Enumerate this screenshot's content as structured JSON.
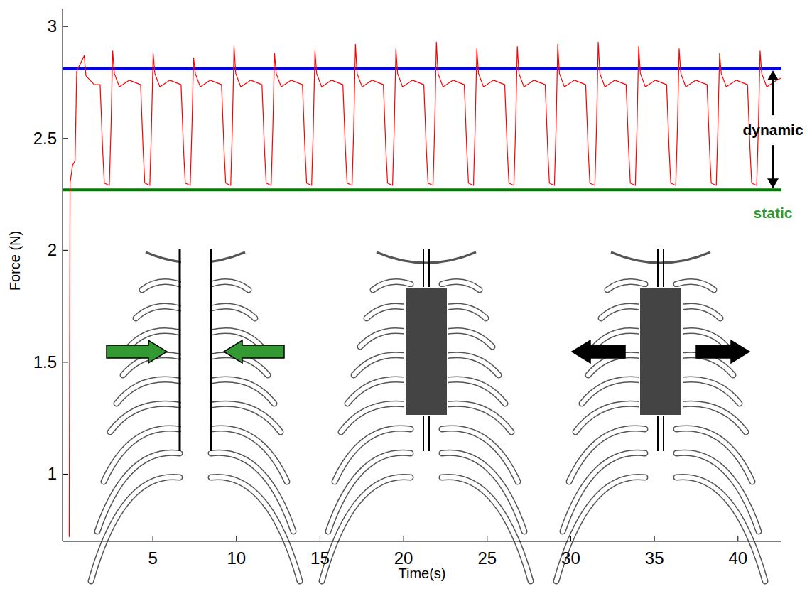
{
  "chart_data": {
    "type": "line",
    "x_label": "Time(s)",
    "y_label": "Force (N)",
    "xlim": [
      -0.4,
      42.6
    ],
    "ylim": [
      0.7,
      3.08
    ],
    "xticks": [
      5,
      10,
      15,
      20,
      25,
      30,
      35,
      40
    ],
    "yticks": [
      1,
      1.5,
      2,
      2.5,
      3
    ],
    "grid": false,
    "color": "#ff0000",
    "x": [
      0,
      0.05,
      0.2,
      0.35,
      0.45,
      0.9,
      1.0,
      1.5,
      1.85,
      2.0,
      2.1,
      2.4,
      2.5,
      2.6,
      2.7,
      3.0,
      3.6,
      4.27,
      4.42,
      4.52,
      4.82,
      4.92,
      5.02,
      5.12,
      5.42,
      6.02,
      6.69,
      6.84,
      6.94,
      7.24,
      7.34,
      7.44,
      7.54,
      7.84,
      8.44,
      9.11,
      9.26,
      9.36,
      9.66,
      9.76,
      9.86,
      9.96,
      10.26,
      10.86,
      11.53,
      11.68,
      11.78,
      12.08,
      12.18,
      12.28,
      12.38,
      12.68,
      13.28,
      13.95,
      14.1,
      14.2,
      14.5,
      14.6,
      14.7,
      14.8,
      15.1,
      15.7,
      16.37,
      16.52,
      16.62,
      16.92,
      17.02,
      17.12,
      17.22,
      17.52,
      18.12,
      18.79,
      18.94,
      19.04,
      19.34,
      19.44,
      19.54,
      19.64,
      19.94,
      20.54,
      21.21,
      21.36,
      21.46,
      21.76,
      21.86,
      21.96,
      22.06,
      22.36,
      22.96,
      23.63,
      23.78,
      23.88,
      24.18,
      24.28,
      24.38,
      24.48,
      24.78,
      25.38,
      26.05,
      26.2,
      26.3,
      26.6,
      26.7,
      26.8,
      26.9,
      27.2,
      27.8,
      28.47,
      28.62,
      28.72,
      29.02,
      29.12,
      29.22,
      29.32,
      29.62,
      30.22,
      30.89,
      31.04,
      31.14,
      31.44,
      31.54,
      31.64,
      31.74,
      32.04,
      32.64,
      33.31,
      33.46,
      33.56,
      33.86,
      33.96,
      34.06,
      34.16,
      34.46,
      35.06,
      35.73,
      35.88,
      35.98,
      36.28,
      36.38,
      36.48,
      36.58,
      36.88,
      37.48,
      38.15,
      38.3,
      38.4,
      38.7,
      38.8,
      38.9,
      39.0,
      39.3,
      39.9,
      40.57,
      40.72,
      40.82,
      41.12,
      41.22,
      41.32,
      41.42,
      41.72,
      42.32,
      42.6
    ],
    "values": [
      0.72,
      2.3,
      2.38,
      2.4,
      2.8,
      2.87,
      2.78,
      2.74,
      2.74,
      2.45,
      2.3,
      2.29,
      2.55,
      2.89,
      2.79,
      2.73,
      2.76,
      2.74,
      2.45,
      2.3,
      2.29,
      2.55,
      2.88,
      2.79,
      2.73,
      2.76,
      2.74,
      2.45,
      2.3,
      2.29,
      2.55,
      2.86,
      2.79,
      2.73,
      2.76,
      2.74,
      2.45,
      2.3,
      2.29,
      2.55,
      2.91,
      2.79,
      2.73,
      2.76,
      2.74,
      2.45,
      2.3,
      2.29,
      2.55,
      2.88,
      2.79,
      2.73,
      2.76,
      2.74,
      2.45,
      2.3,
      2.29,
      2.55,
      2.89,
      2.79,
      2.73,
      2.76,
      2.74,
      2.45,
      2.3,
      2.29,
      2.55,
      2.92,
      2.79,
      2.73,
      2.76,
      2.74,
      2.45,
      2.3,
      2.29,
      2.55,
      2.9,
      2.79,
      2.73,
      2.76,
      2.74,
      2.45,
      2.3,
      2.29,
      2.55,
      2.93,
      2.79,
      2.73,
      2.76,
      2.74,
      2.45,
      2.3,
      2.29,
      2.55,
      2.9,
      2.79,
      2.73,
      2.76,
      2.74,
      2.45,
      2.3,
      2.29,
      2.55,
      2.91,
      2.79,
      2.73,
      2.76,
      2.74,
      2.45,
      2.3,
      2.29,
      2.55,
      2.92,
      2.79,
      2.73,
      2.76,
      2.74,
      2.45,
      2.3,
      2.29,
      2.55,
      2.93,
      2.79,
      2.73,
      2.76,
      2.74,
      2.45,
      2.3,
      2.29,
      2.55,
      2.91,
      2.79,
      2.73,
      2.76,
      2.74,
      2.45,
      2.3,
      2.29,
      2.55,
      2.9,
      2.79,
      2.73,
      2.76,
      2.74,
      2.45,
      2.3,
      2.29,
      2.55,
      2.88,
      2.79,
      2.73,
      2.76,
      2.74,
      2.45,
      2.3,
      2.29,
      2.55,
      2.89,
      2.79,
      2.73,
      2.76,
      2.77
    ],
    "reference_lines": [
      {
        "value": 2.81,
        "color": "#0000ff"
      },
      {
        "value": 2.27,
        "color": "#008000"
      }
    ],
    "annotations": [
      {
        "text": "dynamic",
        "color": "#000000"
      },
      {
        "text": "static",
        "color": "#339933"
      }
    ]
  }
}
